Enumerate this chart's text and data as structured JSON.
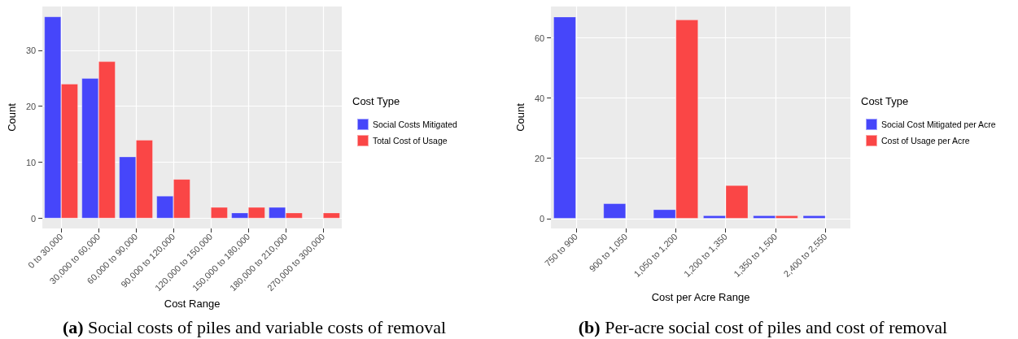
{
  "chart_data": [
    {
      "type": "bar",
      "xlabel": "Cost Range",
      "ylabel": "Count",
      "legend_title": "Cost Type",
      "legend": "right",
      "grid": true,
      "categories": [
        "0 to 30,000",
        "30,000 to 60,000",
        "60,000 to 90,000",
        "90,000 to 120,000",
        "120,000 to 150,000",
        "150,000 to 180,000",
        "180,000 to 210,000",
        "270,000 to 300,000"
      ],
      "series": [
        {
          "name": "Social Costs Mitigated",
          "color": "#4646fa",
          "values": [
            36,
            25,
            11,
            4,
            null,
            1,
            2,
            null
          ]
        },
        {
          "name": "Total Cost of Usage",
          "color": "#fa4646",
          "values": [
            24,
            28,
            14,
            7,
            2,
            2,
            1,
            1
          ]
        }
      ],
      "ylim": [
        -1.8,
        37.8
      ],
      "yticks": [
        0,
        10,
        20,
        30
      ],
      "annotations": [
        "(a) Social costs of piles and variable costs of removal"
      ]
    },
    {
      "type": "bar",
      "xlabel": "Cost per Acre Range",
      "ylabel": "Count",
      "legend_title": "Cost Type",
      "legend": "right",
      "grid": true,
      "categories": [
        "750 to 900",
        "900 to 1,050",
        "1,050 to 1,200",
        "1,200 to 1,350",
        "1,350 to 1,500",
        "2,400 to 2,550"
      ],
      "series": [
        {
          "name": "Social Cost Mitigated per Acre",
          "color": "#4646fa",
          "values": [
            67,
            5,
            3,
            1,
            1,
            1
          ]
        },
        {
          "name": "Cost of Usage per Acre",
          "color": "#fa4646",
          "values": [
            null,
            null,
            66,
            11,
            1,
            null
          ]
        }
      ],
      "ylim": [
        -3.3,
        70.4
      ],
      "yticks": [
        0,
        20,
        40,
        60
      ],
      "annotations": [
        "(b) Per-acre social cost of piles and cost of removal"
      ]
    }
  ]
}
